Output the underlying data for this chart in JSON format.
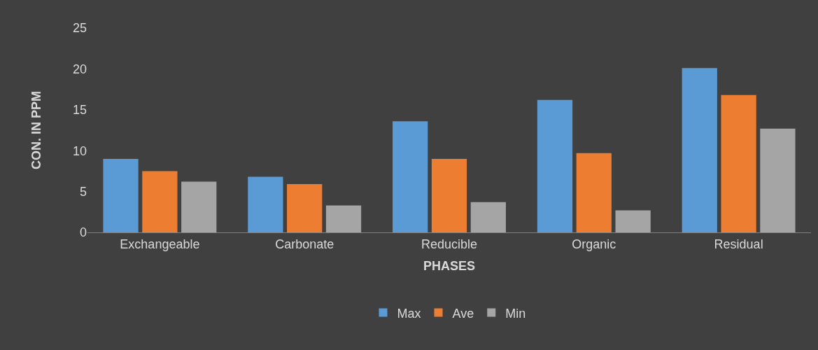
{
  "chart_data": {
    "type": "bar",
    "xlabel": "PHASES",
    "ylabel": "CON. IN PPM",
    "categories": [
      "Exchangeable",
      "Carbonate",
      "Reducible",
      "Organic",
      "Residual"
    ],
    "series": [
      {
        "name": "Max",
        "color": "#5b9bd5",
        "values": [
          9.0,
          6.8,
          13.6,
          16.2,
          20.1
        ]
      },
      {
        "name": "Ave",
        "color": "#ed7d31",
        "values": [
          7.5,
          5.9,
          9.0,
          9.7,
          16.8
        ]
      },
      {
        "name": "Min",
        "color": "#a5a5a5",
        "values": [
          6.2,
          3.3,
          3.7,
          2.7,
          12.7
        ]
      }
    ],
    "ylim": [
      0,
      25
    ],
    "yticks": [
      0,
      5,
      10,
      15,
      20,
      25
    ],
    "grid": false,
    "legend": "bottom"
  }
}
